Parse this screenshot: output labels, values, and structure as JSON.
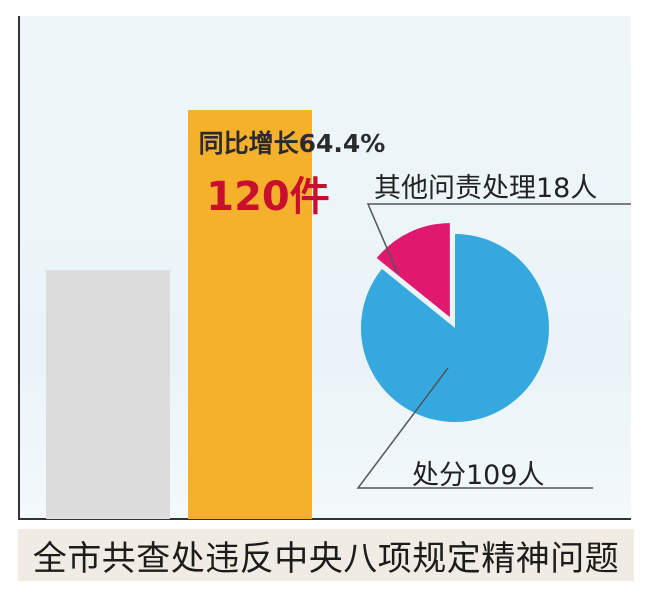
{
  "title": "全市共查处违反中央八项规定精神问题",
  "chart_data": [
    {
      "type": "bar",
      "categories": [
        "",
        ""
      ],
      "values": [
        73,
        120
      ],
      "colors": [
        "#dcdcdc",
        "#f6b12c"
      ],
      "data_labels": [
        "",
        "120件"
      ],
      "annotation": "同比增长64.4%",
      "ylim": [
        0,
        130
      ]
    },
    {
      "type": "pie",
      "slices": [
        {
          "label": "处分109人",
          "value": 109,
          "color": "#35a8df"
        },
        {
          "label": "其他问责处理18人",
          "value": 18,
          "color": "#e0196e"
        }
      ]
    }
  ]
}
